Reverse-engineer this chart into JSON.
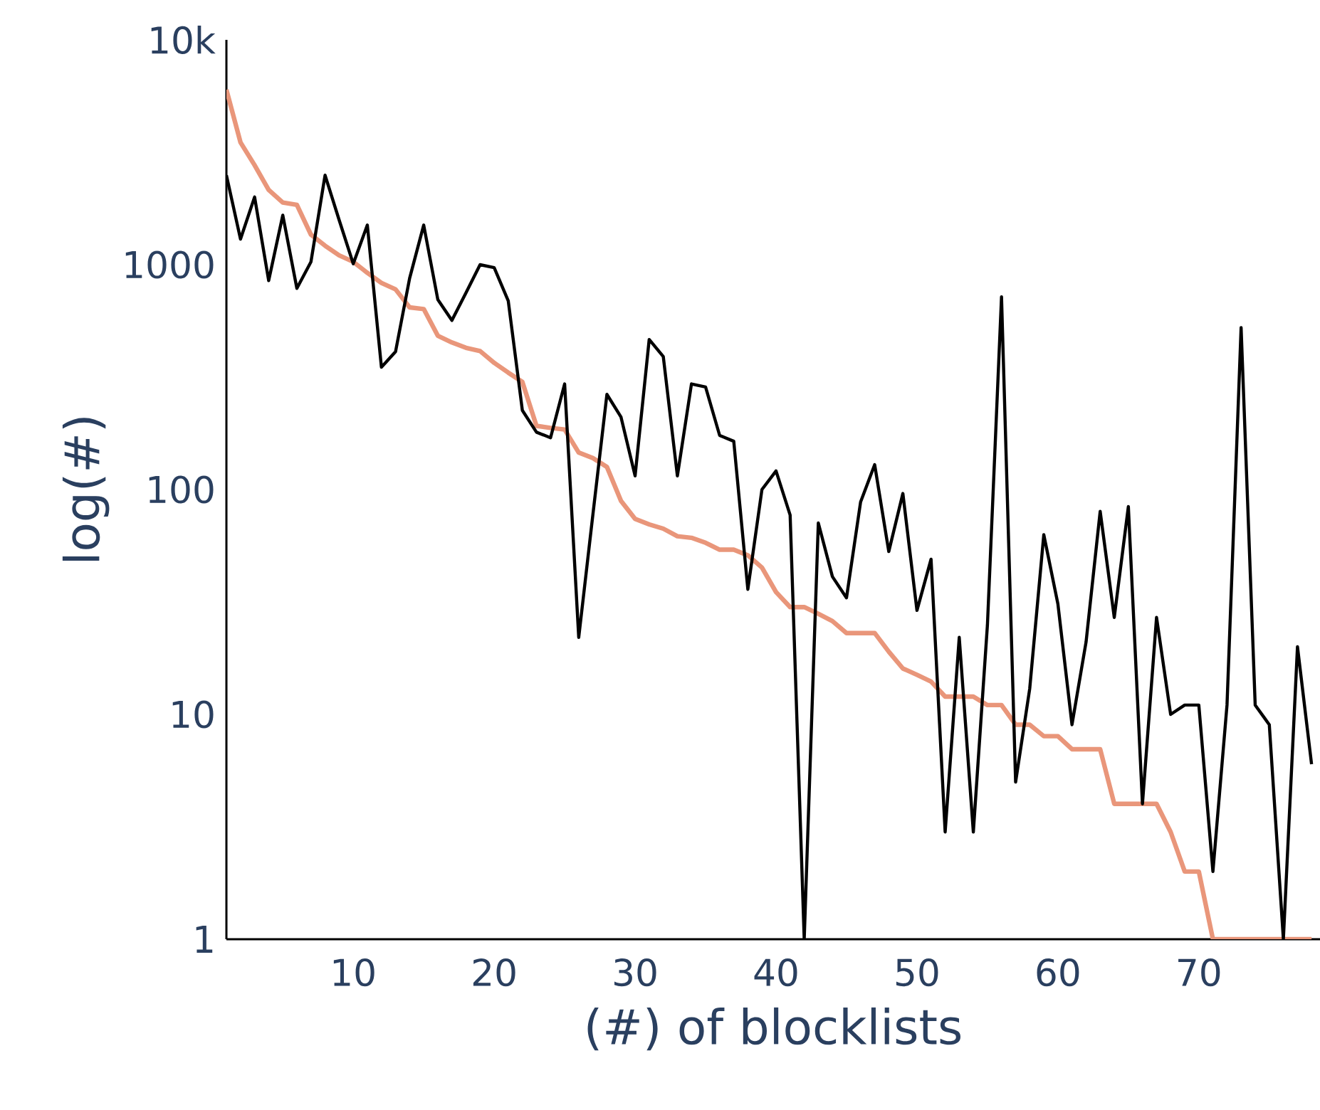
{
  "chart_data": {
    "type": "line",
    "xlabel": "(#) of blocklists",
    "ylabel": "log(#)",
    "log": "y",
    "x": [
      1,
      2,
      3,
      4,
      5,
      6,
      7,
      8,
      9,
      10,
      11,
      12,
      13,
      14,
      15,
      16,
      17,
      18,
      19,
      20,
      21,
      22,
      23,
      24,
      25,
      26,
      27,
      28,
      29,
      30,
      31,
      32,
      33,
      34,
      35,
      36,
      37,
      38,
      39,
      40,
      41,
      42,
      43,
      44,
      45,
      46,
      47,
      48,
      49,
      50,
      51,
      52,
      53,
      54,
      55,
      56,
      57,
      58,
      59,
      60,
      61,
      62,
      63,
      64,
      65,
      66,
      67,
      68,
      69,
      70,
      71,
      72,
      73,
      74,
      75,
      76,
      77,
      78
    ],
    "series": [
      {
        "color": "#e9967a",
        "values": [
          6000,
          3500,
          2770,
          2150,
          1890,
          1845,
          1360,
          1215,
          1100,
          1030,
          920,
          830,
          777,
          646,
          635,
          483,
          451,
          427,
          413,
          366,
          331,
          301,
          192,
          188,
          185,
          146,
          138,
          126,
          89,
          74,
          70,
          67,
          62,
          61,
          58,
          54,
          54,
          51,
          45,
          35,
          30,
          30,
          28,
          26,
          23,
          23,
          23,
          19,
          16,
          15,
          14,
          12,
          12,
          12,
          11,
          11,
          9,
          9,
          8,
          8,
          7,
          7,
          7,
          4,
          4,
          4,
          4,
          3,
          2,
          2,
          1,
          1,
          1,
          1,
          1,
          1,
          1,
          1
        ]
      },
      {
        "color": "#000000",
        "values": [
          2500,
          1300,
          2000,
          850,
          1660,
          785,
          1030,
          2500,
          1580,
          1010,
          1500,
          350,
          410,
          870,
          1500,
          700,
          565,
          750,
          1000,
          970,
          690,
          225,
          180,
          170,
          295,
          22,
          77,
          265,
          210,
          115,
          465,
          390,
          115,
          295,
          286,
          174,
          164,
          36,
          100,
          121,
          77,
          1,
          71,
          41,
          33,
          88,
          129,
          53,
          96,
          29,
          49,
          3,
          22,
          3,
          25,
          720,
          5,
          13,
          63,
          31,
          9,
          21,
          80,
          27,
          84,
          4,
          27,
          10,
          11,
          11,
          2,
          11,
          525,
          11,
          9,
          1,
          20,
          6
        ]
      }
    ],
    "xlim": [
      1,
      78.6
    ],
    "xticks": [
      10,
      20,
      30,
      40,
      50,
      60,
      70
    ],
    "ylim": [
      1,
      10000
    ],
    "yticks": [
      1,
      10,
      100,
      1000,
      {
        "value": 10000,
        "label": "10k"
      }
    ]
  }
}
